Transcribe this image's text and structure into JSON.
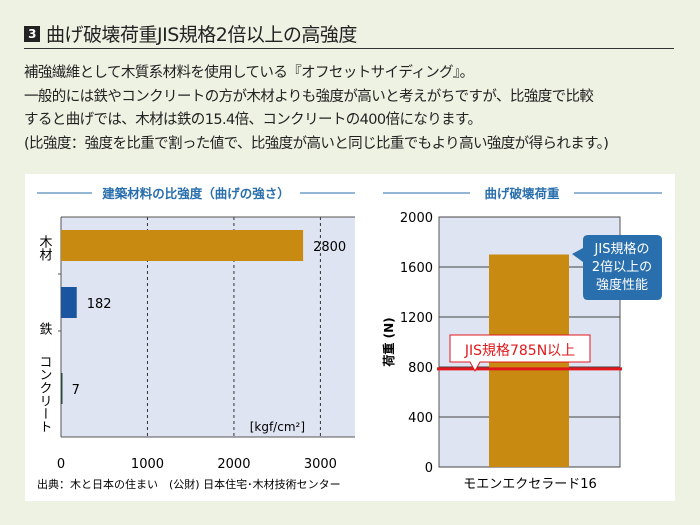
{
  "section": {
    "number": "3",
    "title": "曲げ破壊荷重JIS規格2倍以上の高強度"
  },
  "paragraphs": [
    "補強繊維として木質系材料を使用している『オフセットサイディング』。",
    "一般的には鉄やコンクリートの方が木材よりも強度が高いと考えがちですが、比強度で比較",
    "すると曲げでは、木材は鉄の15.4倍、コンクリートの400倍になります。",
    "(比強度：強度を比重で割った値で、比強度が高いと同じ比重でもより高い強度が得られます。)"
  ],
  "colors": {
    "wood": "#c98a12",
    "iron": "#1a56a0",
    "concrete": "#2a4a3a",
    "plot_bg": "#dfe4f2",
    "accent_blue": "#2a6fad",
    "red": "#e0181c"
  },
  "chart_data": [
    {
      "type": "bar",
      "orientation": "horizontal",
      "title": "建築材料の比強度（曲げの強さ）",
      "categories": [
        "木材",
        "鉄",
        "コンクリート"
      ],
      "values": [
        2800,
        182,
        7
      ],
      "data_labels": [
        "2800",
        "182",
        "7"
      ],
      "unit": "[kgf/cm²]",
      "xlim": [
        0,
        3400
      ],
      "xticks": [
        "0",
        "1000",
        "2000",
        "3000"
      ],
      "xtick_values": [
        0,
        1000,
        2000,
        3000
      ],
      "source": "出典：木と日本の住まい　(公財) 日本住宅･木材技術センター"
    },
    {
      "type": "bar",
      "title": "曲げ破壊荷重",
      "categories": [
        "モエンエクセラード16"
      ],
      "values": [
        1700
      ],
      "ylabel": "荷重 (N)",
      "ylim": [
        0,
        2000
      ],
      "yticks": [
        "0",
        "400",
        "800",
        "1200",
        "1600",
        "2000"
      ],
      "ytick_values": [
        0,
        400,
        800,
        1200,
        1600,
        2000
      ],
      "reference_line": {
        "value": 785,
        "label": "JIS規格785N以上"
      },
      "callout": [
        "JIS規格の",
        "2倍以上の",
        "強度性能"
      ]
    }
  ]
}
